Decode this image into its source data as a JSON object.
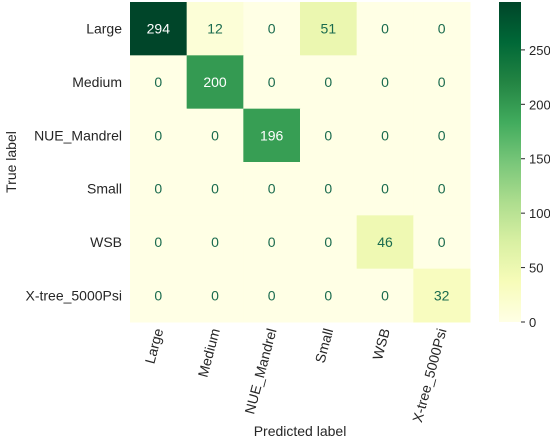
{
  "chart_data": {
    "type": "heatmap",
    "title": "",
    "xlabel": "Predicted label",
    "ylabel": "True label",
    "x_categories": [
      "Large",
      "Medium",
      "NUE_Mandrel",
      "Small",
      "WSB",
      "X-tree_5000Psi"
    ],
    "y_categories": [
      "Large",
      "Medium",
      "NUE_Mandrel",
      "Small",
      "WSB",
      "X-tree_5000Psi"
    ],
    "values": [
      [
        294,
        12,
        0,
        51,
        0,
        0
      ],
      [
        0,
        200,
        0,
        0,
        0,
        0
      ],
      [
        0,
        0,
        196,
        0,
        0,
        0
      ],
      [
        0,
        0,
        0,
        0,
        0,
        0
      ],
      [
        0,
        0,
        0,
        0,
        46,
        0
      ],
      [
        0,
        0,
        0,
        0,
        0,
        32
      ]
    ],
    "colorbar": {
      "min": 0,
      "max": 294,
      "ticks": [
        0,
        50,
        100,
        150,
        200,
        250
      ],
      "colormap": "YlGn",
      "colors": [
        "#ffffe5",
        "#f7fcb9",
        "#d9f0a3",
        "#addd8e",
        "#78c679",
        "#41ab5d",
        "#238443",
        "#006837",
        "#004529"
      ]
    },
    "annotation_colors": {
      "on_light": "#1a6b4e",
      "on_dark": "#ffffff"
    },
    "grid": false
  }
}
